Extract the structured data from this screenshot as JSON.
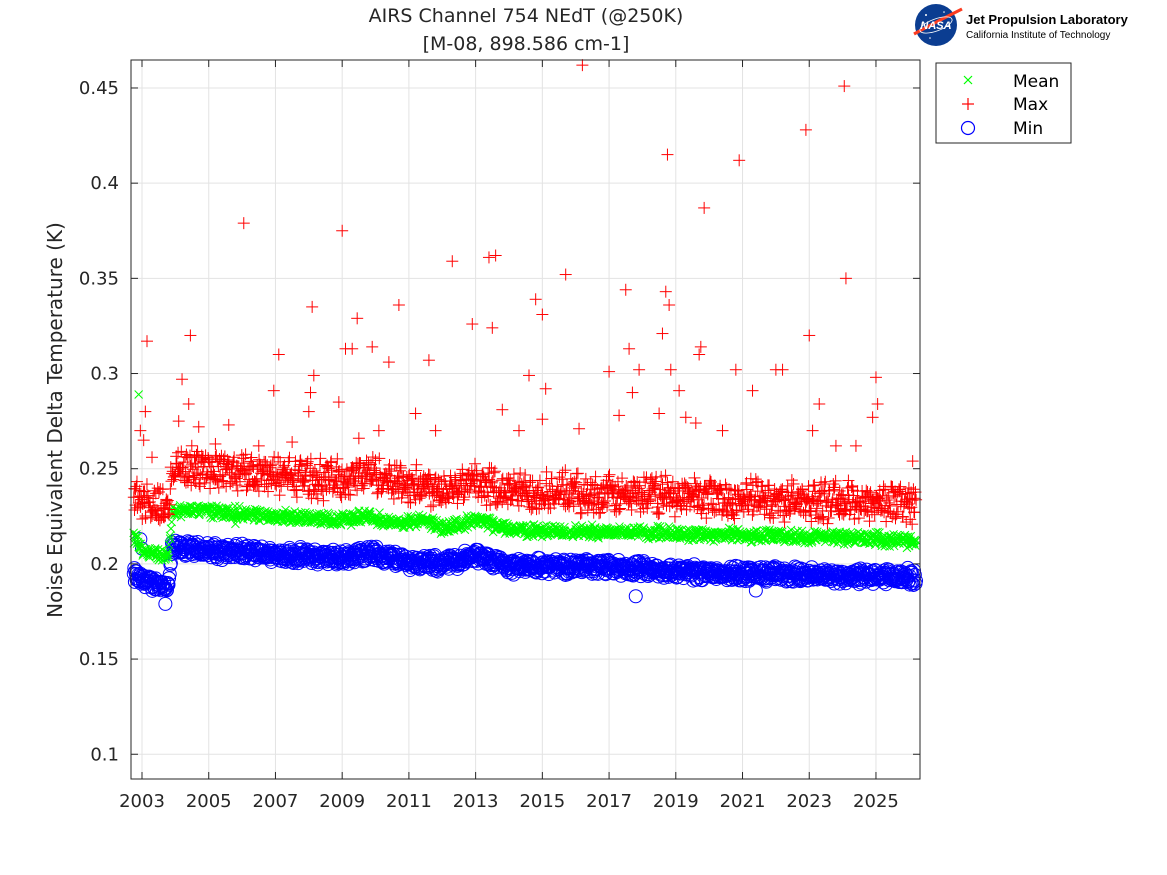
{
  "logo": {
    "org_title": "Jet Propulsion Laboratory",
    "org_subtitle": "California Institute of Technology",
    "badge_text": "NASA"
  },
  "chart_data": {
    "type": "scatter",
    "title": "AIRS Channel 754 NEdT (@250K)",
    "subtitle": "[M-08, 898.586 cm-1]",
    "xlabel": "",
    "ylabel": "Noise Equivalent Delta Temperature (K)",
    "xlim": [
      2002.67,
      2026.32
    ],
    "ylim": [
      0.087,
      0.4647
    ],
    "grid": true,
    "legend_position": "top-right-outside",
    "x_ticks": [
      2003,
      2005,
      2007,
      2009,
      2011,
      2013,
      2015,
      2017,
      2019,
      2021,
      2023,
      2025
    ],
    "x_tick_labels": [
      "2003",
      "2005",
      "2007",
      "2009",
      "2011",
      "2013",
      "2015",
      "2017",
      "2019",
      "2021",
      "2023",
      "2025"
    ],
    "y_ticks": [
      0.1,
      0.15,
      0.2,
      0.25,
      0.3,
      0.35,
      0.4,
      0.45
    ],
    "y_tick_labels": [
      "0.1",
      "0.15",
      "0.2",
      "0.25",
      "0.3",
      "0.35",
      "0.4",
      "0.45"
    ],
    "series": [
      {
        "name": "Mean",
        "marker": "x",
        "color": "#00ff00",
        "trend": [
          [
            2002.75,
            0.215
          ],
          [
            2003.0,
            0.207
          ],
          [
            2003.8,
            0.204
          ],
          [
            2003.9,
            0.228
          ],
          [
            2005,
            0.228
          ],
          [
            2007,
            0.225
          ],
          [
            2009,
            0.223
          ],
          [
            2009.8,
            0.226
          ],
          [
            2010.5,
            0.221
          ],
          [
            2011.5,
            0.223
          ],
          [
            2012,
            0.219
          ],
          [
            2013,
            0.223
          ],
          [
            2013.8,
            0.219
          ],
          [
            2015,
            0.217
          ],
          [
            2017,
            0.217
          ],
          [
            2019,
            0.216
          ],
          [
            2021,
            0.215
          ],
          [
            2023,
            0.214
          ],
          [
            2024,
            0.214
          ],
          [
            2026.2,
            0.212
          ]
        ],
        "spread": 0.004,
        "outliers": [
          [
            2002.9,
            0.289
          ],
          [
            2005.8,
            0.221
          ],
          [
            2020.7,
            0.218
          ]
        ]
      },
      {
        "name": "Max",
        "marker": "+",
        "color": "#ff0000",
        "trend": [
          [
            2002.75,
            0.236
          ],
          [
            2003.0,
            0.233
          ],
          [
            2003.8,
            0.228
          ],
          [
            2003.9,
            0.252
          ],
          [
            2005,
            0.25
          ],
          [
            2007,
            0.247
          ],
          [
            2009,
            0.244
          ],
          [
            2009.8,
            0.248
          ],
          [
            2011,
            0.242
          ],
          [
            2012,
            0.24
          ],
          [
            2013,
            0.243
          ],
          [
            2014,
            0.238
          ],
          [
            2015,
            0.238
          ],
          [
            2017,
            0.236
          ],
          [
            2019,
            0.236
          ],
          [
            2021,
            0.234
          ],
          [
            2023,
            0.233
          ],
          [
            2026.2,
            0.232
          ]
        ],
        "spread": 0.012,
        "outliers": [
          [
            2002.95,
            0.27
          ],
          [
            2003.05,
            0.265
          ],
          [
            2003.1,
            0.28
          ],
          [
            2003.15,
            0.317
          ],
          [
            2003.3,
            0.256
          ],
          [
            2004.1,
            0.275
          ],
          [
            2004.2,
            0.297
          ],
          [
            2004.4,
            0.284
          ],
          [
            2004.45,
            0.32
          ],
          [
            2004.7,
            0.272
          ],
          [
            2005.2,
            0.263
          ],
          [
            2005.6,
            0.273
          ],
          [
            2006.05,
            0.379
          ],
          [
            2006.5,
            0.262
          ],
          [
            2006.95,
            0.291
          ],
          [
            2007.1,
            0.31
          ],
          [
            2007.5,
            0.264
          ],
          [
            2008.0,
            0.28
          ],
          [
            2008.05,
            0.29
          ],
          [
            2008.1,
            0.335
          ],
          [
            2008.15,
            0.299
          ],
          [
            2008.9,
            0.285
          ],
          [
            2009.0,
            0.375
          ],
          [
            2009.1,
            0.313
          ],
          [
            2009.3,
            0.313
          ],
          [
            2009.45,
            0.329
          ],
          [
            2009.5,
            0.266
          ],
          [
            2009.9,
            0.314
          ],
          [
            2010.1,
            0.27
          ],
          [
            2010.4,
            0.306
          ],
          [
            2010.7,
            0.336
          ],
          [
            2011.2,
            0.279
          ],
          [
            2011.6,
            0.307
          ],
          [
            2011.8,
            0.27
          ],
          [
            2012.3,
            0.359
          ],
          [
            2012.9,
            0.326
          ],
          [
            2013.4,
            0.361
          ],
          [
            2013.5,
            0.324
          ],
          [
            2013.6,
            0.362
          ],
          [
            2013.8,
            0.281
          ],
          [
            2014.3,
            0.27
          ],
          [
            2014.6,
            0.299
          ],
          [
            2014.8,
            0.339
          ],
          [
            2015.0,
            0.331
          ],
          [
            2015.1,
            0.292
          ],
          [
            2015.0,
            0.276
          ],
          [
            2015.7,
            0.352
          ],
          [
            2016.1,
            0.271
          ],
          [
            2016.2,
            0.462
          ],
          [
            2017.0,
            0.301
          ],
          [
            2017.5,
            0.344
          ],
          [
            2017.6,
            0.313
          ],
          [
            2017.7,
            0.29
          ],
          [
            2017.9,
            0.302
          ],
          [
            2017.3,
            0.278
          ],
          [
            2018.5,
            0.279
          ],
          [
            2018.6,
            0.321
          ],
          [
            2018.7,
            0.343
          ],
          [
            2018.75,
            0.415
          ],
          [
            2018.8,
            0.336
          ],
          [
            2018.85,
            0.302
          ],
          [
            2019.1,
            0.291
          ],
          [
            2019.3,
            0.277
          ],
          [
            2019.6,
            0.274
          ],
          [
            2019.7,
            0.31
          ],
          [
            2019.75,
            0.314
          ],
          [
            2019.85,
            0.387
          ],
          [
            2020.4,
            0.27
          ],
          [
            2020.8,
            0.302
          ],
          [
            2020.9,
            0.412
          ],
          [
            2021.3,
            0.291
          ],
          [
            2022.0,
            0.302
          ],
          [
            2022.2,
            0.302
          ],
          [
            2022.9,
            0.428
          ],
          [
            2023.0,
            0.32
          ],
          [
            2023.1,
            0.27
          ],
          [
            2023.3,
            0.284
          ],
          [
            2023.8,
            0.262
          ],
          [
            2024.05,
            0.451
          ],
          [
            2024.1,
            0.35
          ],
          [
            2024.4,
            0.262
          ],
          [
            2024.9,
            0.277
          ],
          [
            2025.0,
            0.298
          ],
          [
            2025.05,
            0.284
          ],
          [
            2026.1,
            0.254
          ]
        ]
      },
      {
        "name": "Min",
        "marker": "o",
        "color": "#0000ff",
        "trend": [
          [
            2002.75,
            0.194
          ],
          [
            2003.0,
            0.191
          ],
          [
            2003.8,
            0.188
          ],
          [
            2003.9,
            0.208
          ],
          [
            2005,
            0.207
          ],
          [
            2007,
            0.205
          ],
          [
            2009,
            0.203
          ],
          [
            2009.8,
            0.206
          ],
          [
            2011,
            0.201
          ],
          [
            2012,
            0.2
          ],
          [
            2013,
            0.204
          ],
          [
            2014,
            0.199
          ],
          [
            2015,
            0.199
          ],
          [
            2017,
            0.198
          ],
          [
            2019,
            0.196
          ],
          [
            2021,
            0.195
          ],
          [
            2023,
            0.194
          ],
          [
            2026.2,
            0.193
          ]
        ],
        "spread": 0.005,
        "outliers": [
          [
            2002.95,
            0.213
          ],
          [
            2003.0,
            0.208
          ],
          [
            2003.7,
            0.179
          ],
          [
            2017.8,
            0.183
          ],
          [
            2021.4,
            0.186
          ]
        ]
      }
    ]
  }
}
